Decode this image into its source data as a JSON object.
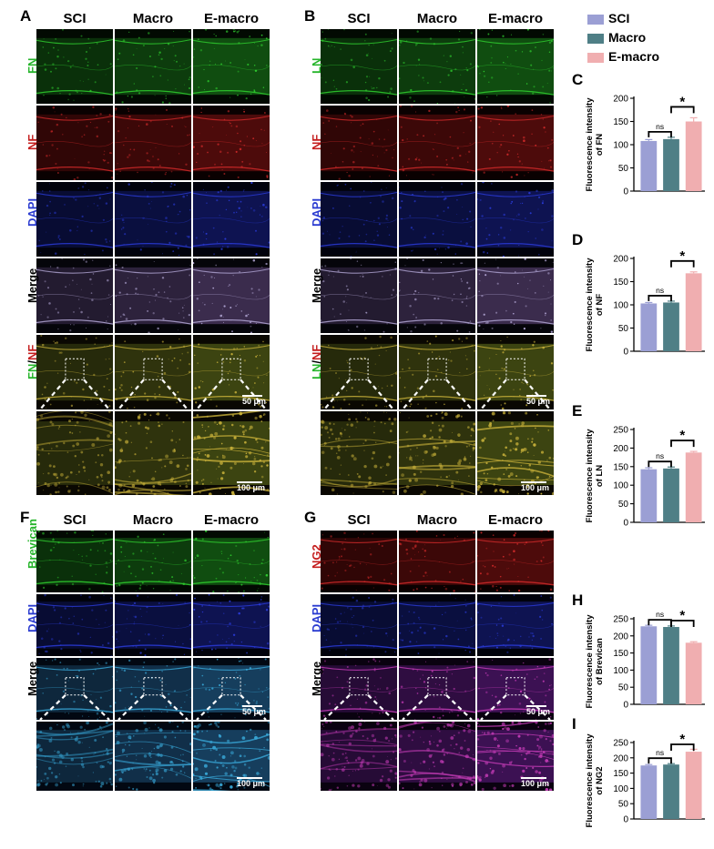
{
  "columns": [
    "SCI",
    "Macro",
    "E-macro"
  ],
  "colors": {
    "SCI": "#9b9fd4",
    "Macro": "#4f7f86",
    "E-macro": "#f0aeb0",
    "green": "#27b52c",
    "red": "#c41e1e",
    "blue": "#2a3bd0",
    "black": "#000000"
  },
  "panels": [
    {
      "letter": "A",
      "rows": [
        {
          "label": "FN",
          "color": "green",
          "stain": "green"
        },
        {
          "label": "NF",
          "color": "red",
          "stain": "red"
        },
        {
          "label": "DAPI",
          "color": "blue",
          "stain": "blue"
        },
        {
          "label": "Merge",
          "color": "black",
          "stain": "merge"
        },
        {
          "label_parts": [
            {
              "text": "FN",
              "color": "green"
            },
            {
              "text": "/",
              "color": "black"
            },
            {
              "text": "NF",
              "color": "red"
            }
          ],
          "stain": "yellow"
        }
      ],
      "scale_low": "50 μm",
      "scale_zoom": "100 μm"
    },
    {
      "letter": "B",
      "rows": [
        {
          "label": "LN",
          "color": "green",
          "stain": "green"
        },
        {
          "label": "NF",
          "color": "red",
          "stain": "red"
        },
        {
          "label": "DAPI",
          "color": "blue",
          "stain": "blue"
        },
        {
          "label": "Merge",
          "color": "black",
          "stain": "merge"
        },
        {
          "label_parts": [
            {
              "text": "LN",
              "color": "green"
            },
            {
              "text": "/",
              "color": "black"
            },
            {
              "text": "NF",
              "color": "red"
            }
          ],
          "stain": "yellow"
        }
      ],
      "scale_low": "50 μm",
      "scale_zoom": "100 μm"
    },
    {
      "letter": "F",
      "rows": [
        {
          "label": "Brevican",
          "color": "green",
          "stain": "green"
        },
        {
          "label": "DAPI",
          "color": "blue",
          "stain": "blue"
        },
        {
          "label": "Merge",
          "color": "black",
          "stain": "cyan"
        }
      ],
      "scale_low": "50 μm",
      "scale_zoom": "100 μm"
    },
    {
      "letter": "G",
      "rows": [
        {
          "label": "NG2",
          "color": "red",
          "stain": "red"
        },
        {
          "label": "DAPI",
          "color": "blue",
          "stain": "blue"
        },
        {
          "label": "Merge",
          "color": "black",
          "stain": "magenta"
        }
      ],
      "scale_low": "50 μm",
      "scale_zoom": "100 μm"
    }
  ],
  "legend": [
    "SCI",
    "Macro",
    "E-macro"
  ],
  "chart_data": [
    {
      "letter": "C",
      "type": "bar",
      "categories": [
        "SCI",
        "Macro",
        "E-macro"
      ],
      "values": [
        108,
        112,
        150
      ],
      "errors": [
        3,
        4,
        8
      ],
      "ylabel": "Fluorescence intensity of FN",
      "ylabel_lines": [
        "Fluorescence intensity",
        "of FN"
      ],
      "ylim": [
        0,
        200
      ],
      "yticks": [
        0,
        50,
        100,
        150,
        200
      ],
      "sig": [
        "ns",
        "*"
      ]
    },
    {
      "letter": "D",
      "type": "bar",
      "categories": [
        "SCI",
        "Macro",
        "E-macro"
      ],
      "values": [
        103,
        105,
        168
      ],
      "errors": [
        2,
        3,
        3
      ],
      "ylabel": "Fluorescence intensity of NF",
      "ylabel_lines": [
        "Fluorescence intensity",
        "of NF"
      ],
      "ylim": [
        0,
        200
      ],
      "yticks": [
        0,
        50,
        100,
        150,
        200
      ],
      "sig": [
        "ns",
        "*"
      ]
    },
    {
      "letter": "E",
      "type": "bar",
      "categories": [
        "SCI",
        "Macro",
        "E-macro"
      ],
      "values": [
        143,
        145,
        188
      ],
      "errors": [
        4,
        4,
        3
      ],
      "ylabel": "Fluorescence intensity of LN",
      "ylabel_lines": [
        "Fluorescence intensity",
        "of LN"
      ],
      "ylim": [
        0,
        250
      ],
      "yticks": [
        0,
        50,
        100,
        150,
        200,
        250
      ],
      "sig": [
        "ns",
        "*"
      ]
    },
    {
      "letter": "H",
      "type": "bar",
      "categories": [
        "SCI",
        "Macro",
        "E-macro"
      ],
      "values": [
        228,
        226,
        180
      ],
      "errors": [
        3,
        3,
        3
      ],
      "ylabel": "Fluorescence intensity of Brevican",
      "ylabel_lines": [
        "Fluorescence intensity",
        "of Brevican"
      ],
      "ylim": [
        0,
        250
      ],
      "yticks": [
        0,
        50,
        100,
        150,
        200,
        250
      ],
      "sig": [
        "ns",
        "*"
      ]
    },
    {
      "letter": "I",
      "type": "bar",
      "categories": [
        "SCI",
        "Macro",
        "E-macro"
      ],
      "values": [
        175,
        178,
        220
      ],
      "errors": [
        3,
        3,
        8
      ],
      "ylabel": "Fluorescence intensity of NG2",
      "ylabel_lines": [
        "Fluorescence intensity",
        "of NG2"
      ],
      "ylim": [
        0,
        250
      ],
      "yticks": [
        0,
        50,
        100,
        150,
        200,
        250
      ],
      "sig": [
        "ns",
        "*"
      ]
    }
  ]
}
